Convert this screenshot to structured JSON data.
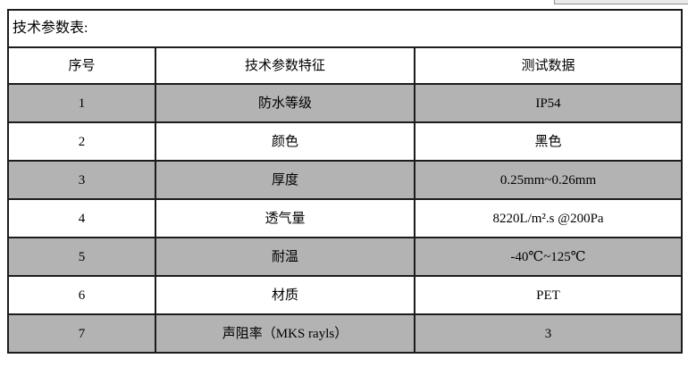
{
  "table": {
    "title": "技术参数表:",
    "columns": {
      "no": "序号",
      "feature": "技术参数特征",
      "value": "测试数据"
    },
    "rows": [
      {
        "no": "1",
        "feature": "防水等级",
        "value": "IP54"
      },
      {
        "no": "2",
        "feature": "颜色",
        "value": "黑色"
      },
      {
        "no": "3",
        "feature": "厚度",
        "value": "0.25mm~0.26mm"
      },
      {
        "no": "4",
        "feature": "透气量",
        "value": "8220L/m².s @200Pa"
      },
      {
        "no": "5",
        "feature": "耐温",
        "value": "-40℃~125℃"
      },
      {
        "no": "6",
        "feature": "材质",
        "value": "PET"
      },
      {
        "no": "7",
        "feature": "声阻率（MKS rayls）",
        "value": "3"
      }
    ],
    "colors": {
      "shaded_row": "#b3b3b3",
      "border": "#1c1c1c",
      "background": "#ffffff"
    }
  }
}
